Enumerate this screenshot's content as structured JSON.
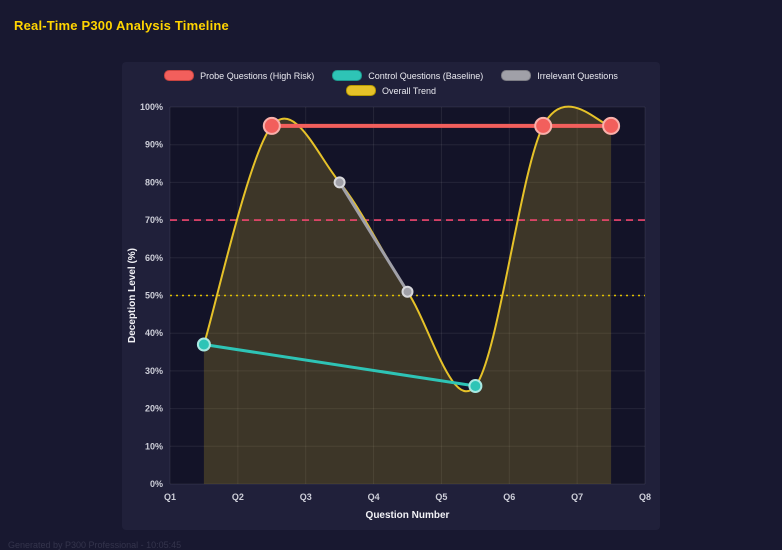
{
  "title": "Real-Time P300 Analysis Timeline",
  "footer": "Generated by P300 Professional - 10:05:45",
  "colors": {
    "page_bg": "#181830",
    "panel_bg": "#20203a",
    "plot_bg": "#131328",
    "grid": "rgba(255,255,255,0.08)",
    "title": "#ffd400",
    "tick_text": "#cdced8",
    "axis_title_text": "#f1f1f6"
  },
  "legend": {
    "rows": [
      [
        {
          "label": "Probe Questions (High Risk)",
          "color": "#f25f5c",
          "border": "#c94440"
        },
        {
          "label": "Control Questions (Baseline)",
          "color": "#2ec4b6",
          "border": "#1f9a8f"
        },
        {
          "label": "Irrelevant Questions",
          "color": "#a0a0a8",
          "border": "#7d7d85"
        }
      ],
      [
        {
          "label": "Overall Trend",
          "color": "#e6c229",
          "border": "#b89a00"
        }
      ]
    ]
  },
  "chart_data": {
    "type": "line",
    "title": "Real-Time P300 Analysis Timeline",
    "xlabel": "Question Number",
    "ylabel": "Deception Level (%)",
    "x_ticks": [
      "Q1",
      "Q2",
      "Q3",
      "Q4",
      "Q5",
      "Q6",
      "Q7",
      "Q8"
    ],
    "x_range": [
      1,
      8
    ],
    "ylim": [
      0,
      100
    ],
    "y_tick_step": 10,
    "y_tick_suffix": "%",
    "grid": true,
    "legend_position": "top",
    "series": [
      {
        "name": "Probe Questions (High Risk)",
        "color": "#f25f5c",
        "marker_stroke": "#f9b0ab",
        "points": [
          [
            2.5,
            95
          ],
          [
            6.5,
            95
          ],
          [
            7.5,
            95
          ]
        ],
        "line_width": 4,
        "marker_radius": 8,
        "smooth": false
      },
      {
        "name": "Control Questions (Baseline)",
        "color": "#2ec4b6",
        "marker_stroke": "#a8e8e2",
        "points": [
          [
            1.5,
            37
          ],
          [
            5.5,
            26
          ]
        ],
        "line_width": 3,
        "marker_radius": 6,
        "smooth": false
      },
      {
        "name": "Irrelevant Questions",
        "color": "#a0a0a8",
        "marker_stroke": "#d8d8dc",
        "points": [
          [
            3.5,
            80
          ],
          [
            4.5,
            51
          ]
        ],
        "line_width": 3,
        "marker_radius": 5,
        "smooth": false
      },
      {
        "name": "Overall Trend",
        "color": "#e6c229",
        "points": [
          [
            1.5,
            37
          ],
          [
            2.5,
            95
          ],
          [
            3.5,
            80
          ],
          [
            4.5,
            51
          ],
          [
            5.5,
            26
          ],
          [
            6.5,
            95
          ],
          [
            7.5,
            95
          ]
        ],
        "line_width": 2,
        "marker_radius": 0,
        "smooth": true,
        "fill": true,
        "fill_opacity": 0.2
      }
    ],
    "thresholds": [
      {
        "value": 70,
        "color": "#ef476f",
        "dash": "7 5"
      },
      {
        "value": 50,
        "color": "#e0c000",
        "dash": "2 4"
      }
    ]
  }
}
